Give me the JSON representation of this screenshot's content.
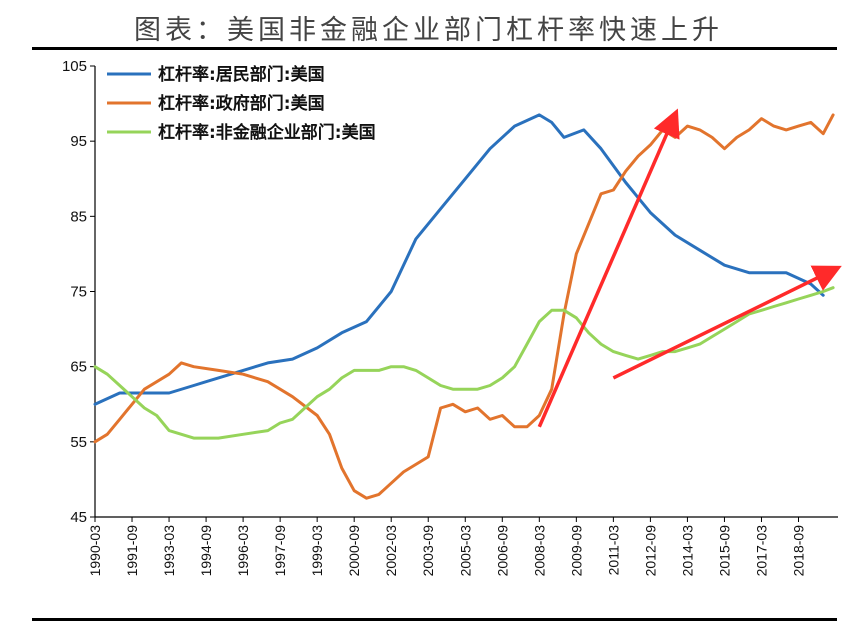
{
  "chart_data": {
    "type": "line",
    "title": "图表：美国非金融企业部门杠杆率快速上升",
    "xlabel": "",
    "ylabel": "",
    "ylim": [
      45,
      105
    ],
    "yticks": [
      45,
      55,
      65,
      75,
      85,
      95,
      105
    ],
    "xlim": [
      1990.0,
      2020.1
    ],
    "xtick_labels": [
      "1990-03",
      "1991-09",
      "1993-03",
      "1994-09",
      "1996-03",
      "1997-09",
      "1999-03",
      "2000-09",
      "2002-03",
      "2003-09",
      "2005-03",
      "2006-09",
      "2008-03",
      "2009-09",
      "2011-03",
      "2012-09",
      "2014-03",
      "2015-09",
      "2017-03",
      "2018-09"
    ],
    "legend_position": "top-left",
    "grid": false,
    "series": [
      {
        "name": "杠杆率:居民部门:美国",
        "color": "#2a71bd",
        "x": [
          1990.0,
          1991.0,
          1992.0,
          1993.0,
          1994.0,
          1995.0,
          1996.0,
          1997.0,
          1998.0,
          1999.0,
          2000.0,
          2001.0,
          2002.0,
          2003.0,
          2004.0,
          2005.0,
          2006.0,
          2007.0,
          2008.0,
          2008.5,
          2009.0,
          2009.8,
          2010.5,
          2011.5,
          2012.5,
          2013.5,
          2014.5,
          2015.5,
          2016.5,
          2017.0,
          2018.0,
          2019.0,
          2019.5
        ],
        "values": [
          60.0,
          61.5,
          61.5,
          61.5,
          62.5,
          63.5,
          64.5,
          65.5,
          66.0,
          67.5,
          69.5,
          71.0,
          75.0,
          82.0,
          86.0,
          90.0,
          94.0,
          97.0,
          98.5,
          97.5,
          95.5,
          96.5,
          94.0,
          89.5,
          85.5,
          82.5,
          80.5,
          78.5,
          77.5,
          77.5,
          77.5,
          76.0,
          74.5
        ]
      },
      {
        "name": "杠杆率:政府部门:美国",
        "color": "#e2742d",
        "x": [
          1990.0,
          1990.5,
          1991.0,
          1991.5,
          1992.0,
          1993.0,
          1993.5,
          1994.0,
          1995.0,
          1996.0,
          1997.0,
          1998.0,
          1999.0,
          1999.5,
          2000.0,
          2000.5,
          2001.0,
          2001.5,
          2002.0,
          2002.5,
          2003.0,
          2003.5,
          2004.0,
          2004.5,
          2005.0,
          2005.5,
          2006.0,
          2006.5,
          2007.0,
          2007.5,
          2008.0,
          2008.5,
          2009.0,
          2009.5,
          2010.0,
          2010.5,
          2011.0,
          2011.5,
          2012.0,
          2012.5,
          2013.0,
          2013.5,
          2014.0,
          2014.5,
          2015.0,
          2015.5,
          2016.0,
          2016.5,
          2017.0,
          2017.5,
          2018.0,
          2018.5,
          2019.0,
          2019.5,
          2019.9
        ],
        "values": [
          55.0,
          56.0,
          58.0,
          60.0,
          62.0,
          64.0,
          65.5,
          65.0,
          64.5,
          64.0,
          63.0,
          61.0,
          58.5,
          56.0,
          51.5,
          48.5,
          47.5,
          48.0,
          49.5,
          51.0,
          52.0,
          53.0,
          59.5,
          60.0,
          59.0,
          59.5,
          58.0,
          58.5,
          57.0,
          57.0,
          58.5,
          62.0,
          72.0,
          80.0,
          84.0,
          88.0,
          88.5,
          91.0,
          93.0,
          94.5,
          96.5,
          95.5,
          97.0,
          96.5,
          95.5,
          94.0,
          95.5,
          96.5,
          98.0,
          97.0,
          96.5,
          97.0,
          97.5,
          96.0,
          98.5
        ]
      },
      {
        "name": "杠杆率:非金融企业部门:美国",
        "color": "#96d45a",
        "x": [
          1990.0,
          1990.5,
          1991.0,
          1991.5,
          1992.0,
          1992.5,
          1993.0,
          1993.5,
          1994.0,
          1994.5,
          1995.0,
          1996.0,
          1997.0,
          1997.5,
          1998.0,
          1998.5,
          1999.0,
          1999.5,
          2000.0,
          2000.5,
          2001.0,
          2001.5,
          2002.0,
          2002.5,
          2003.0,
          2003.5,
          2004.0,
          2004.5,
          2005.0,
          2005.5,
          2006.0,
          2006.5,
          2007.0,
          2007.5,
          2008.0,
          2008.5,
          2009.0,
          2009.5,
          2010.0,
          2010.5,
          2011.0,
          2011.5,
          2012.0,
          2012.5,
          2013.0,
          2013.5,
          2014.0,
          2014.5,
          2015.0,
          2015.5,
          2016.0,
          2016.5,
          2017.0,
          2017.5,
          2018.0,
          2018.5,
          2019.0,
          2019.5,
          2019.9
        ],
        "values": [
          65.0,
          64.0,
          62.5,
          61.0,
          59.5,
          58.5,
          56.5,
          56.0,
          55.5,
          55.5,
          55.5,
          56.0,
          56.5,
          57.5,
          58.0,
          59.5,
          61.0,
          62.0,
          63.5,
          64.5,
          64.5,
          64.5,
          65.0,
          65.0,
          64.5,
          63.5,
          62.5,
          62.0,
          62.0,
          62.0,
          62.5,
          63.5,
          65.0,
          68.0,
          71.0,
          72.5,
          72.5,
          71.5,
          69.5,
          68.0,
          67.0,
          66.5,
          66.0,
          66.5,
          67.0,
          67.0,
          67.5,
          68.0,
          69.0,
          70.0,
          71.0,
          72.0,
          72.5,
          73.0,
          73.5,
          74.0,
          74.5,
          75.0,
          75.5
        ]
      }
    ],
    "annotations": [
      {
        "type": "arrow",
        "color": "#ff2a2a",
        "from": [
          2008.0,
          57.0
        ],
        "to": [
          2013.5,
          98.5
        ]
      },
      {
        "type": "arrow",
        "color": "#ff2a2a",
        "from": [
          2011.0,
          63.5
        ],
        "to": [
          2020.0,
          78.0
        ]
      }
    ]
  }
}
